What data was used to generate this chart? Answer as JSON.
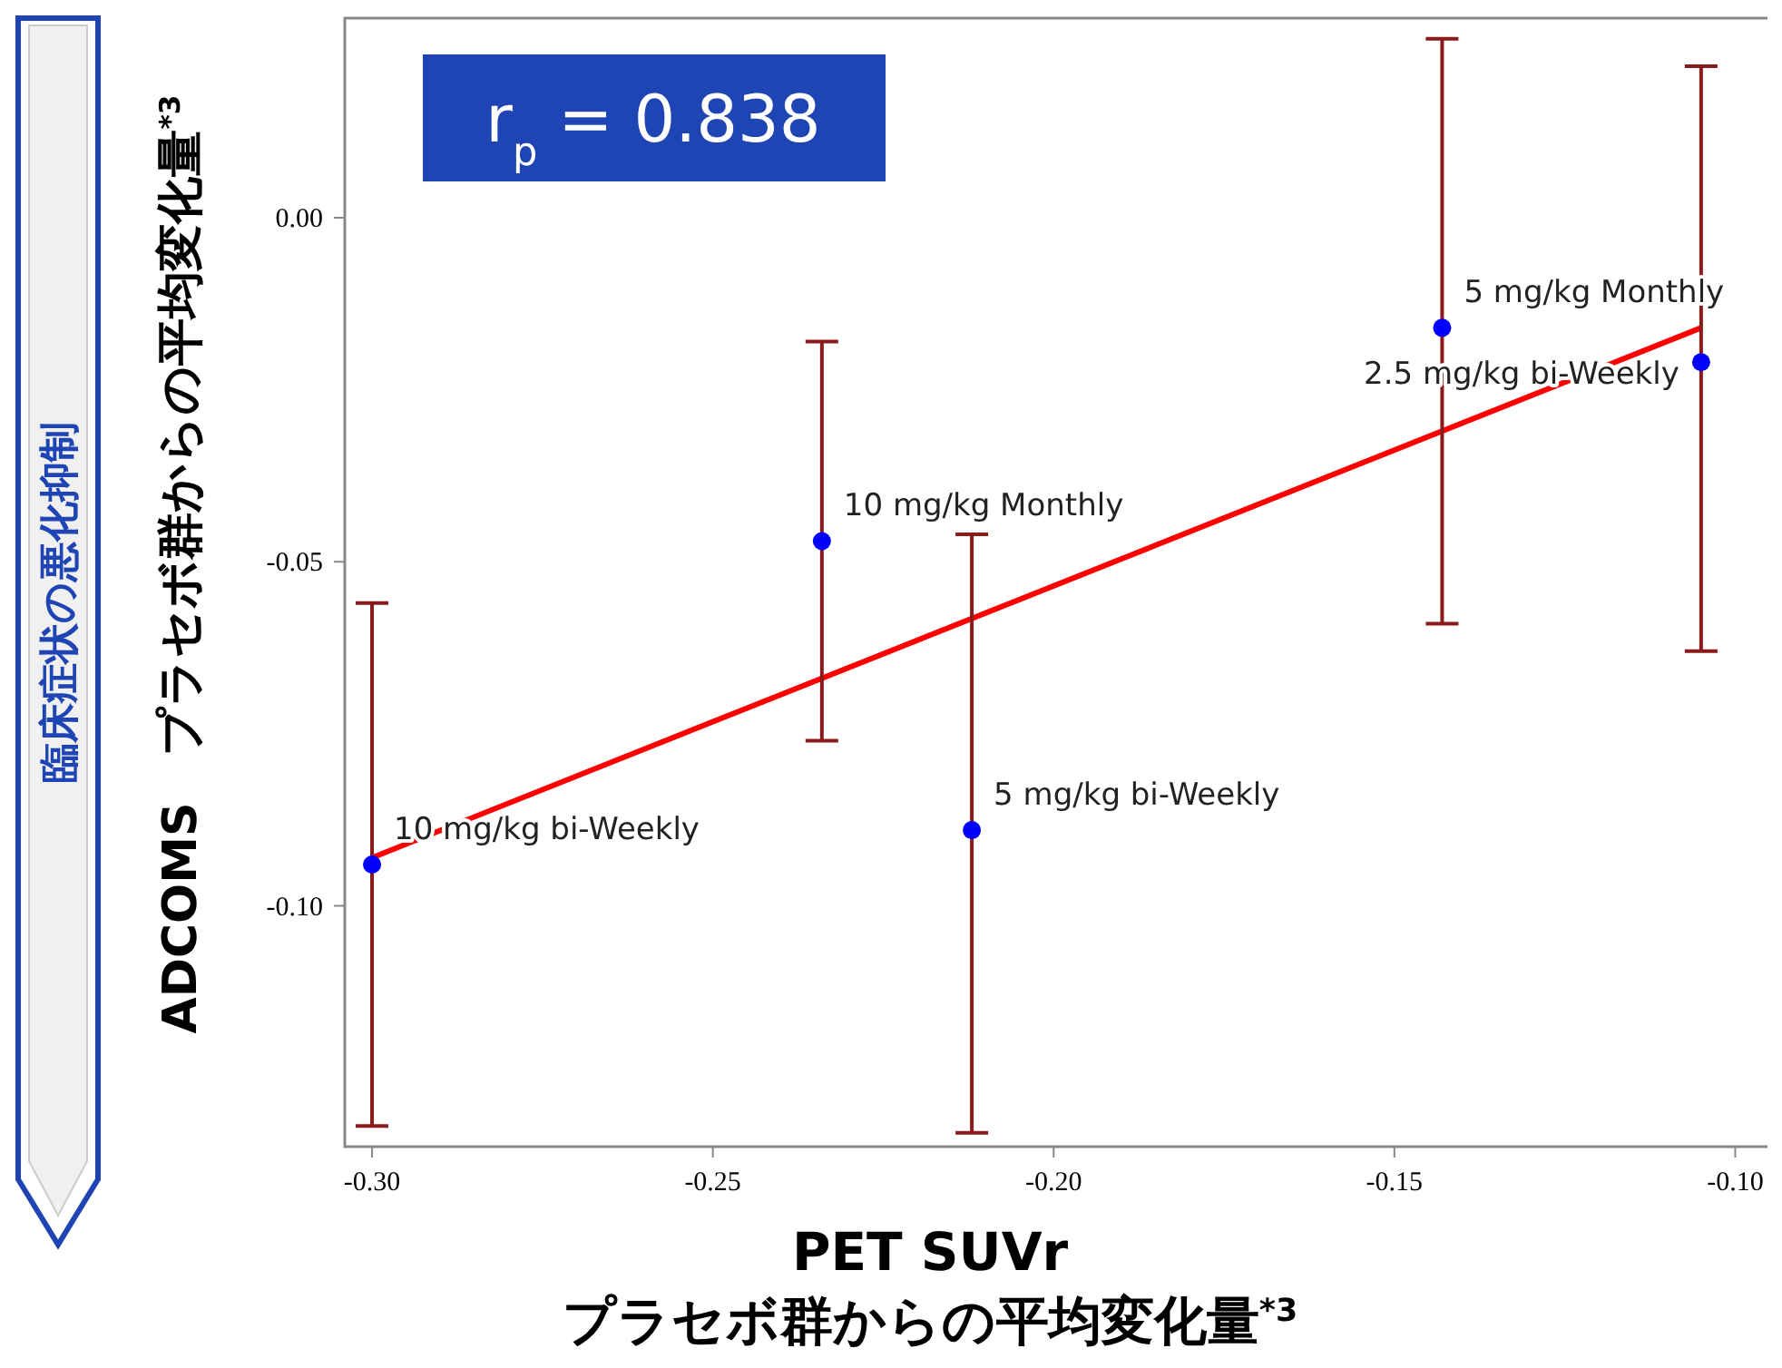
{
  "chart_data": {
    "type": "scatter",
    "xlabel": "PET SUVr\nプラセボ群からの平均変化量$^{*3}$",
    "ylabel": "ADCOMS　プラセボ群からの平均変化量$^{*3}$",
    "xlim": [
      -0.304,
      -0.095
    ],
    "ylim": [
      -0.135,
      0.029
    ],
    "xticks": [
      {
        "value": -0.3,
        "label": "-0.30"
      },
      {
        "value": -0.25,
        "label": "-0.25"
      },
      {
        "value": -0.2,
        "label": "-0.20"
      },
      {
        "value": -0.15,
        "label": "-0.15"
      },
      {
        "value": -0.1,
        "label": "-0.10"
      }
    ],
    "yticks": [
      {
        "value": 0,
        "label": "0.00"
      },
      {
        "value": -0.05,
        "label": "-0.05"
      },
      {
        "value": -0.1,
        "label": "-0.10"
      }
    ],
    "series": [
      {
        "type": "line",
        "color": "#ff0000",
        "x": [
          -0.3,
          -0.105
        ],
        "values": [
          -0.093,
          -0.016
        ]
      },
      {
        "color": "#0000ff",
        "marker": "circle",
        "x": [
          -0.3,
          -0.234,
          -0.212,
          -0.143,
          -0.105
        ],
        "values": [
          -0.094,
          -0.047,
          -0.089,
          -0.016,
          -0.021
        ],
        "errors": [
          [
            -0.132,
            -0.056
          ],
          [
            -0.076,
            -0.018
          ],
          [
            -0.133,
            -0.046
          ],
          [
            -0.059,
            0.026
          ],
          [
            -0.063,
            0.022
          ]
        ]
      }
    ],
    "annotations": [
      "r$_{p}$ = 0.838",
      "臨床症状の悪化抑制",
      {
        "text": "10 mg/kg bi-Weekly",
        "x": -0.3,
        "y": -0.094
      },
      {
        "text": "10 mg/kg Monthly",
        "x": -0.234,
        "y": -0.047
      },
      {
        "text": "5 mg/kg bi-Weekly",
        "x": -0.212,
        "y": -0.089
      },
      {
        "text": "5 mg/kg Monthly",
        "x": -0.143,
        "y": -0.016
      },
      {
        "text": "2.5 mg/kg bi-Weekly",
        "x": -0.105,
        "y": -0.021
      }
    ]
  }
}
